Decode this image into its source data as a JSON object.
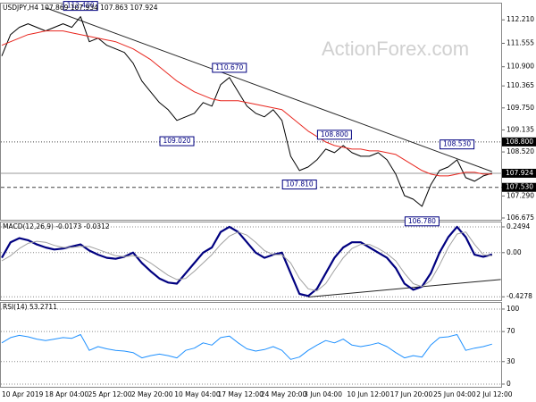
{
  "chart_data": [
    {
      "type": "line",
      "title": "USDJPY,H4  107.869 107.934 107.863 107.924",
      "watermark": "ActionForex.com",
      "ylim": [
        106.65,
        112.64
      ],
      "yticks": [
        {
          "value": 112.21,
          "label": "112.210"
        },
        111.555,
        {
          "value": 110.9,
          "label": "110.900"
        },
        110.365,
        {
          "value": 109.75,
          "label": "109.750"
        },
        109.135,
        {
          "value": 108.52,
          "label": "108.520"
        },
        {
          "value": 107.29,
          "label": "107.290"
        },
        106.675
      ],
      "series": [
        {
          "name": "Price",
          "color": "#000000",
          "width": 1,
          "values": [
            111.2,
            111.8,
            112.0,
            112.1,
            112.0,
            111.9,
            112.0,
            112.1,
            112.0,
            112.3,
            111.6,
            111.7,
            111.5,
            111.4,
            111.3,
            111.0,
            110.5,
            110.2,
            109.9,
            109.7,
            109.4,
            109.5,
            109.6,
            109.9,
            109.8,
            110.4,
            110.6,
            110.2,
            109.8,
            109.6,
            109.5,
            109.7,
            109.4,
            108.4,
            108.0,
            108.1,
            108.3,
            108.6,
            108.5,
            108.7,
            108.5,
            108.4,
            108.4,
            108.5,
            108.3,
            107.9,
            107.3,
            107.2,
            107.0,
            107.6,
            108.0,
            108.1,
            108.3,
            107.8,
            107.7,
            107.85,
            107.924
          ]
        },
        {
          "name": "MA",
          "color": "#e8261e",
          "width": 1,
          "values": [
            111.5,
            111.6,
            111.7,
            111.8,
            111.85,
            111.9,
            111.9,
            111.9,
            111.85,
            111.8,
            111.75,
            111.7,
            111.65,
            111.6,
            111.5,
            111.4,
            111.25,
            111.1,
            110.9,
            110.7,
            110.5,
            110.35,
            110.2,
            110.1,
            110.0,
            109.95,
            109.95,
            109.95,
            109.9,
            109.85,
            109.8,
            109.75,
            109.7,
            109.5,
            109.3,
            109.1,
            108.95,
            108.8,
            108.7,
            108.65,
            108.6,
            108.6,
            108.55,
            108.55,
            108.5,
            108.45,
            108.3,
            108.15,
            108.0,
            107.9,
            107.85,
            107.85,
            107.9,
            107.95,
            107.95,
            107.9,
            107.9
          ]
        }
      ],
      "trendline": {
        "x": [
          5,
          56
        ],
        "values": [
          112.55,
          107.97
        ]
      },
      "levels": [
        {
          "value": 108.8,
          "label": "108.800",
          "style": "dotted"
        },
        {
          "value": 107.924,
          "label": "107.924",
          "style": "solid"
        },
        {
          "value": 107.53,
          "label": "107.530",
          "style": "dashed"
        }
      ],
      "annotations": [
        {
          "label": "112.400",
          "value": 112.4,
          "x": 9
        },
        {
          "label": "110.670",
          "value": 110.67,
          "x": 26
        },
        {
          "label": "109.020",
          "value": 109.02,
          "x": 20
        },
        {
          "label": "108.800",
          "value": 108.8,
          "x": 38
        },
        {
          "label": "107.810",
          "value": 107.81,
          "x": 34
        },
        {
          "label": "106.780",
          "value": 106.78,
          "x": 48
        },
        {
          "label": "108.530",
          "value": 108.53,
          "x": 52
        }
      ]
    },
    {
      "type": "line",
      "title": "MACD(12,26,9) -0.0173 -0.0312",
      "ylim": [
        -0.4516,
        0.2838
      ],
      "grid": "dotted",
      "yticks": [
        0.2494,
        {
          "value": 0,
          "label": "0.00"
        },
        -0.4278
      ],
      "series": [
        {
          "name": "MACD",
          "color": "#000080",
          "width": 2.2,
          "values": [
            -0.05,
            0.1,
            0.14,
            0.12,
            0.08,
            0.05,
            0.03,
            0.04,
            0.06,
            0.08,
            0.02,
            -0.02,
            -0.05,
            -0.06,
            -0.04,
            0.0,
            -0.1,
            -0.18,
            -0.25,
            -0.29,
            -0.3,
            -0.2,
            -0.1,
            0.0,
            0.05,
            0.2,
            0.25,
            0.2,
            0.1,
            0.0,
            -0.05,
            -0.02,
            0.0,
            -0.2,
            -0.4,
            -0.42,
            -0.35,
            -0.2,
            -0.05,
            0.05,
            0.1,
            0.1,
            0.05,
            0.0,
            -0.05,
            -0.15,
            -0.3,
            -0.36,
            -0.33,
            -0.2,
            0.0,
            0.15,
            0.25,
            0.15,
            -0.02,
            -0.04,
            -0.0173
          ]
        },
        {
          "name": "Signal",
          "color": "#a0a0a0",
          "width": 1,
          "values": [
            -0.08,
            -0.03,
            0.04,
            0.09,
            0.11,
            0.1,
            0.07,
            0.05,
            0.05,
            0.06,
            0.06,
            0.03,
            0.0,
            -0.03,
            -0.04,
            -0.03,
            -0.05,
            -0.1,
            -0.16,
            -0.22,
            -0.26,
            -0.25,
            -0.18,
            -0.1,
            -0.02,
            0.08,
            0.16,
            0.2,
            0.17,
            0.1,
            0.02,
            -0.02,
            -0.02,
            -0.1,
            -0.25,
            -0.35,
            -0.37,
            -0.3,
            -0.17,
            -0.05,
            0.04,
            0.08,
            0.08,
            0.04,
            -0.01,
            -0.08,
            -0.2,
            -0.3,
            -0.33,
            -0.27,
            -0.12,
            0.05,
            0.18,
            0.2,
            0.08,
            -0.02,
            -0.0312
          ]
        }
      ],
      "trendline": {
        "x": [
          35,
          57
        ],
        "values": [
          -0.43,
          -0.26
        ]
      }
    },
    {
      "type": "line",
      "title": "RSI(14) 53.2711",
      "ylim": [
        -3.6,
        107.1
      ],
      "grid": "dotted",
      "yticks": [
        100,
        70,
        30,
        0
      ],
      "series": [
        {
          "name": "RSI",
          "color": "#1e90ff",
          "width": 1,
          "values": [
            55,
            62,
            65,
            63,
            60,
            58,
            60,
            62,
            61,
            66,
            45,
            50,
            47,
            45,
            44,
            42,
            35,
            38,
            40,
            38,
            35,
            45,
            48,
            55,
            52,
            62,
            64,
            55,
            47,
            44,
            46,
            50,
            45,
            33,
            36,
            45,
            52,
            58,
            55,
            60,
            52,
            50,
            52,
            55,
            50,
            42,
            35,
            38,
            36,
            52,
            62,
            63,
            66,
            45,
            48,
            50,
            53.2711
          ]
        }
      ],
      "x_labels": [
        "10 Apr 2019",
        "18 Apr 04:00",
        "25 Apr 12:00",
        "2 May 20:00",
        "10 May 04:00",
        "17 May 12:00",
        "24 May 20:00",
        "3 Jun 04:00",
        "10 Jun 12:00",
        "17 Jun 20:00",
        "25 Jun 04:00",
        "2 Jul 12:00"
      ]
    }
  ]
}
